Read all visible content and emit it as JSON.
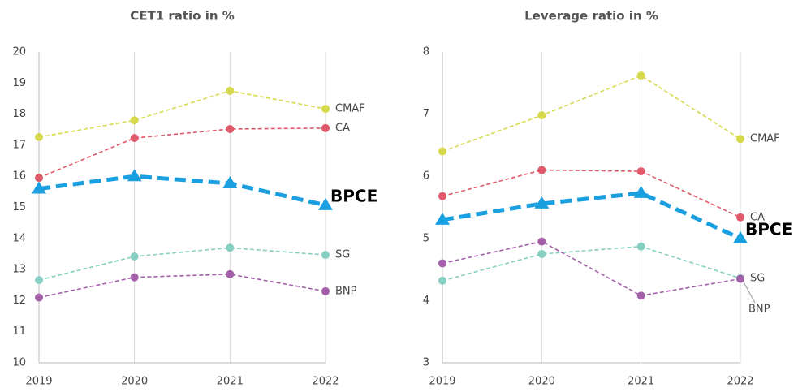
{
  "chart_data": [
    {
      "type": "line",
      "title": "CET1 ratio in %",
      "categories": [
        "2019",
        "2020",
        "2021",
        "2022"
      ],
      "ylim": [
        10,
        20
      ],
      "yticks": [
        10,
        11,
        12,
        13,
        14,
        15,
        16,
        17,
        18,
        19,
        20
      ],
      "grid": true,
      "series": [
        {
          "name": "CMAF",
          "color": "#d6d94c",
          "marker": "circle",
          "values": [
            17.26,
            17.8,
            18.75,
            18.17
          ]
        },
        {
          "name": "CA",
          "color": "#e05a6b",
          "marker": "circle",
          "values": [
            15.95,
            17.23,
            17.52,
            17.55
          ]
        },
        {
          "name": "BPCE",
          "color": "#1a9fe0",
          "marker": "triangle",
          "values": [
            15.6,
            16.0,
            15.77,
            15.07
          ]
        },
        {
          "name": "SG",
          "color": "#86cfc3",
          "marker": "circle",
          "values": [
            12.66,
            13.42,
            13.7,
            13.47
          ]
        },
        {
          "name": "BNP",
          "color": "#a45fa9",
          "marker": "circle",
          "values": [
            12.1,
            12.75,
            12.85,
            12.3
          ]
        }
      ]
    },
    {
      "type": "line",
      "title": "Leverage ratio in %",
      "categories": [
        "2019",
        "2020",
        "2021",
        "2022"
      ],
      "ylim": [
        3,
        8
      ],
      "yticks": [
        3,
        4,
        5,
        6,
        7,
        8
      ],
      "grid": true,
      "series": [
        {
          "name": "CMAF",
          "color": "#d6d94c",
          "marker": "circle",
          "values": [
            6.4,
            6.98,
            7.62,
            6.6
          ]
        },
        {
          "name": "CA",
          "color": "#e05a6b",
          "marker": "circle",
          "values": [
            5.68,
            6.1,
            6.08,
            5.34
          ]
        },
        {
          "name": "BPCE",
          "color": "#1a9fe0",
          "marker": "triangle",
          "values": [
            5.3,
            5.56,
            5.73,
            5.0
          ]
        },
        {
          "name": "SG",
          "color": "#86cfc3",
          "marker": "circle",
          "values": [
            4.32,
            4.75,
            4.87,
            4.36
          ]
        },
        {
          "name": "BNP",
          "color": "#a45fa9",
          "marker": "circle",
          "values": [
            4.6,
            4.95,
            4.08,
            4.35
          ]
        }
      ]
    }
  ]
}
